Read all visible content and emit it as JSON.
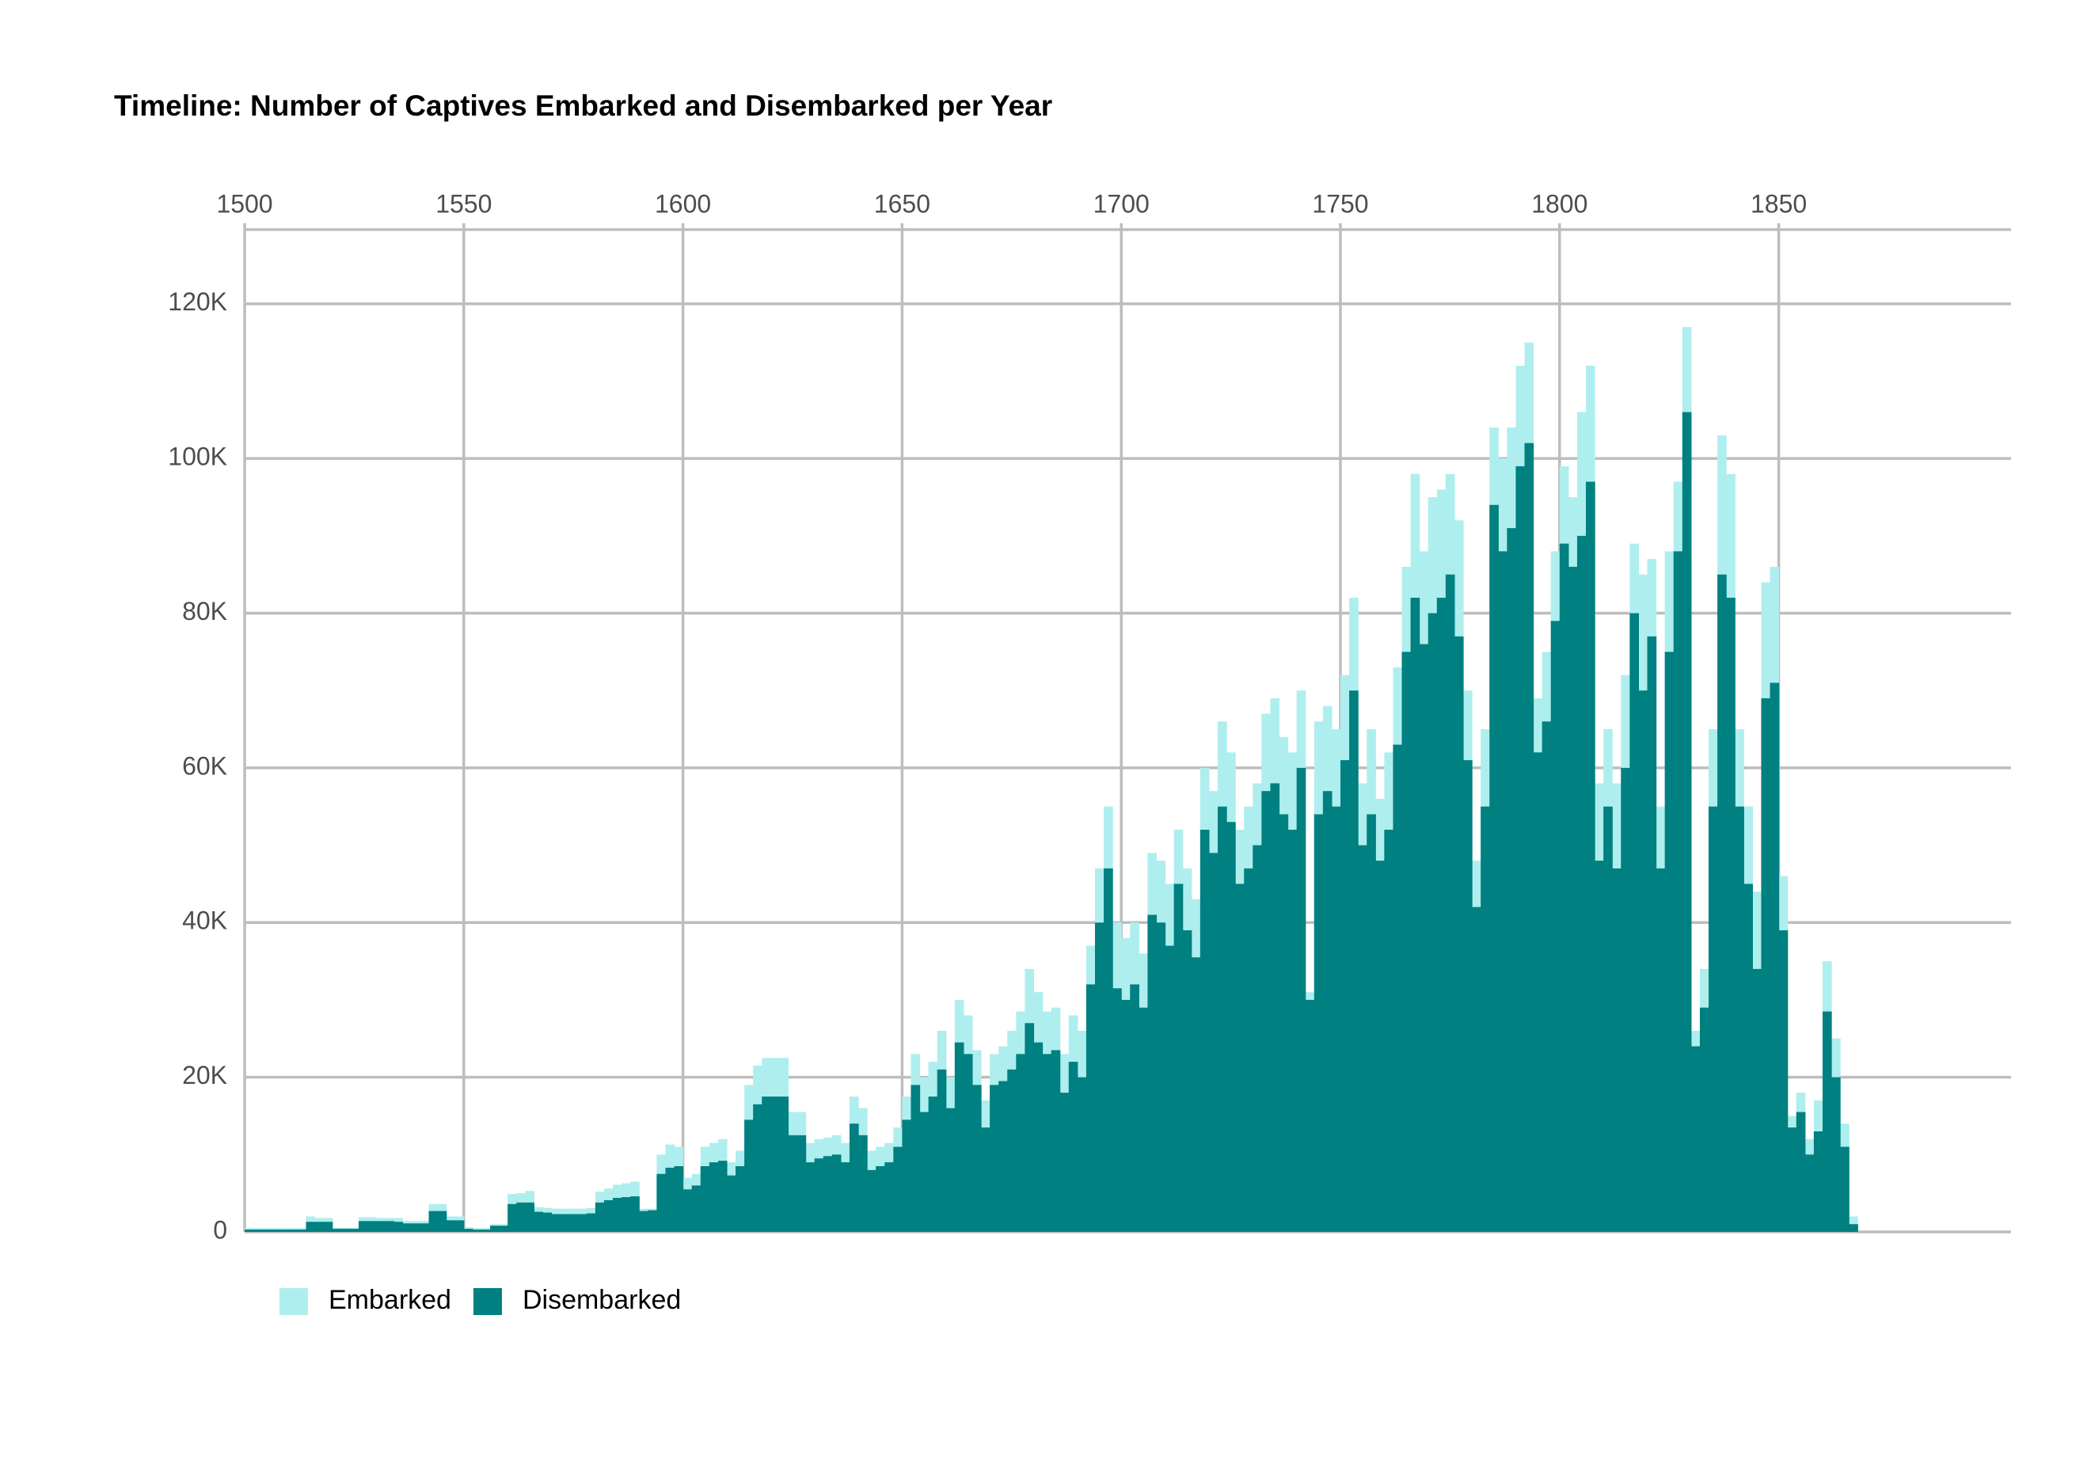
{
  "chart_data": {
    "type": "bar",
    "title": "Timeline: Number of Captives Embarked and Disembarked per Year",
    "x": [
      1500,
      1502,
      1504,
      1506,
      1508,
      1510,
      1512,
      1514,
      1516,
      1518,
      1520,
      1522,
      1524,
      1526,
      1528,
      1530,
      1532,
      1534,
      1536,
      1538,
      1540,
      1542,
      1544,
      1546,
      1548,
      1550,
      1552,
      1554,
      1556,
      1558,
      1560,
      1562,
      1564,
      1566,
      1568,
      1570,
      1572,
      1574,
      1576,
      1578,
      1580,
      1582,
      1584,
      1586,
      1588,
      1590,
      1592,
      1594,
      1596,
      1598,
      1600,
      1602,
      1604,
      1606,
      1608,
      1610,
      1612,
      1614,
      1616,
      1618,
      1620,
      1622,
      1624,
      1626,
      1628,
      1630,
      1632,
      1634,
      1636,
      1638,
      1640,
      1642,
      1644,
      1646,
      1648,
      1650,
      1652,
      1654,
      1656,
      1658,
      1660,
      1662,
      1664,
      1666,
      1668,
      1670,
      1672,
      1674,
      1676,
      1678,
      1680,
      1682,
      1684,
      1686,
      1688,
      1690,
      1692,
      1694,
      1696,
      1698,
      1700,
      1702,
      1704,
      1706,
      1708,
      1710,
      1712,
      1714,
      1716,
      1718,
      1720,
      1722,
      1724,
      1726,
      1728,
      1730,
      1732,
      1734,
      1736,
      1738,
      1740,
      1742,
      1744,
      1746,
      1748,
      1750,
      1752,
      1754,
      1756,
      1758,
      1760,
      1762,
      1764,
      1766,
      1768,
      1770,
      1772,
      1774,
      1776,
      1778,
      1780,
      1782,
      1784,
      1786,
      1788,
      1790,
      1792,
      1794,
      1796,
      1798,
      1800,
      1802,
      1804,
      1806,
      1808,
      1810,
      1812,
      1814,
      1816,
      1818,
      1820,
      1822,
      1824,
      1826,
      1828,
      1830,
      1832,
      1834,
      1836,
      1838,
      1840,
      1842,
      1844,
      1846,
      1848,
      1850,
      1852,
      1854,
      1856,
      1858,
      1860,
      1862,
      1864,
      1866
    ],
    "series": [
      {
        "name": "Embarked",
        "color": "#afeeee",
        "values": [
          500,
          500,
          500,
          500,
          500,
          500,
          500,
          2000,
          1800,
          1800,
          500,
          500,
          500,
          1900,
          1900,
          1800,
          1800,
          1800,
          1400,
          1400,
          1400,
          3600,
          3600,
          2000,
          2000,
          600,
          500,
          500,
          1000,
          1000,
          4900,
          5000,
          5300,
          3200,
          3100,
          3000,
          3000,
          3000,
          3000,
          3100,
          5200,
          5600,
          6100,
          6300,
          6500,
          3000,
          3000,
          10000,
          11300,
          11000,
          7000,
          7500,
          11000,
          11500,
          12000,
          9000,
          10500,
          19000,
          21500,
          22500,
          22500,
          22500,
          15500,
          15500,
          11500,
          12000,
          12200,
          12500,
          11500,
          17500,
          16000,
          10500,
          11000,
          11500,
          13500,
          17500,
          23000,
          20000,
          22000,
          26000,
          20000,
          30000,
          28000,
          23500,
          17000,
          23000,
          24000,
          26000,
          28500,
          34000,
          31000,
          28500,
          29000,
          23000,
          28000,
          26000,
          37000,
          47000,
          55000,
          40000,
          38000,
          40000,
          36000,
          49000,
          48000,
          45000,
          52000,
          47000,
          43000,
          60000,
          57000,
          66000,
          62000,
          52000,
          55000,
          58000,
          67000,
          69000,
          64000,
          62000,
          70000,
          31000,
          66000,
          68000,
          65000,
          72000,
          82000,
          58000,
          65000,
          56000,
          62000,
          73000,
          86000,
          98000,
          88000,
          95000,
          96000,
          98000,
          92000,
          70000,
          48000,
          65000,
          104000,
          100000,
          104000,
          112000,
          115000,
          69000,
          75000,
          88000,
          99000,
          95000,
          106000,
          112000,
          58000,
          65000,
          58000,
          72000,
          89000,
          85000,
          87000,
          55000,
          88000,
          97000,
          117000,
          26000,
          34000,
          65000,
          103000,
          98000,
          65000,
          55000,
          44000,
          84000,
          86000,
          46000,
          15000,
          18000,
          12000,
          17000,
          35000,
          25000,
          14000,
          2000
        ]
      },
      {
        "name": "Disembarked",
        "color": "#008080",
        "values": [
          300,
          300,
          300,
          300,
          300,
          300,
          300,
          1300,
          1300,
          1300,
          400,
          400,
          400,
          1400,
          1400,
          1400,
          1400,
          1300,
          1100,
          1100,
          1100,
          2700,
          2700,
          1500,
          1500,
          400,
          300,
          300,
          800,
          800,
          3600,
          3800,
          3800,
          2600,
          2500,
          2300,
          2300,
          2300,
          2300,
          2400,
          3800,
          4100,
          4400,
          4500,
          4600,
          2700,
          2800,
          7500,
          8300,
          8500,
          5500,
          6000,
          8500,
          9000,
          9200,
          7300,
          8500,
          14500,
          16500,
          17500,
          17500,
          17500,
          12500,
          12500,
          9000,
          9500,
          9800,
          10000,
          9000,
          14000,
          12500,
          8000,
          8500,
          9000,
          11000,
          14500,
          19000,
          15500,
          17500,
          21000,
          16000,
          24500,
          23000,
          19000,
          13500,
          19000,
          19500,
          21000,
          23000,
          27000,
          24500,
          23000,
          23500,
          18000,
          22000,
          20000,
          32000,
          40000,
          47000,
          31500,
          30000,
          32000,
          29000,
          41000,
          40000,
          37000,
          45000,
          39000,
          35500,
          52000,
          49000,
          55000,
          53000,
          45000,
          47000,
          50000,
          57000,
          58000,
          54000,
          52000,
          60000,
          30000,
          54000,
          57000,
          55000,
          61000,
          70000,
          50000,
          54000,
          48000,
          52000,
          63000,
          75000,
          82000,
          76000,
          80000,
          82000,
          85000,
          77000,
          61000,
          42000,
          55000,
          94000,
          88000,
          91000,
          99000,
          102000,
          62000,
          66000,
          79000,
          89000,
          86000,
          90000,
          97000,
          48000,
          55000,
          47000,
          60000,
          80000,
          70000,
          77000,
          47000,
          75000,
          88000,
          106000,
          24000,
          29000,
          55000,
          85000,
          82000,
          55000,
          45000,
          34000,
          69000,
          71000,
          39000,
          13500,
          15500,
          10000,
          13000,
          28500,
          20000,
          11000,
          1000
        ]
      }
    ],
    "xlim": [
      1500,
      1903
    ],
    "xticks": [
      1500,
      1550,
      1600,
      1650,
      1700,
      1750,
      1800,
      1850
    ],
    "ylim": [
      0,
      129600
    ],
    "yticks": [
      0,
      {
        "value": 20000,
        "label": "20K"
      },
      {
        "value": 40000,
        "label": "40K"
      },
      {
        "value": 60000,
        "label": "60K"
      },
      {
        "value": 80000,
        "label": "80K"
      },
      {
        "value": 100000,
        "label": "100K"
      },
      {
        "value": 120000,
        "label": "120K"
      }
    ],
    "grid": true,
    "x_axis_position": "top",
    "legend_position": "bottom-left"
  }
}
